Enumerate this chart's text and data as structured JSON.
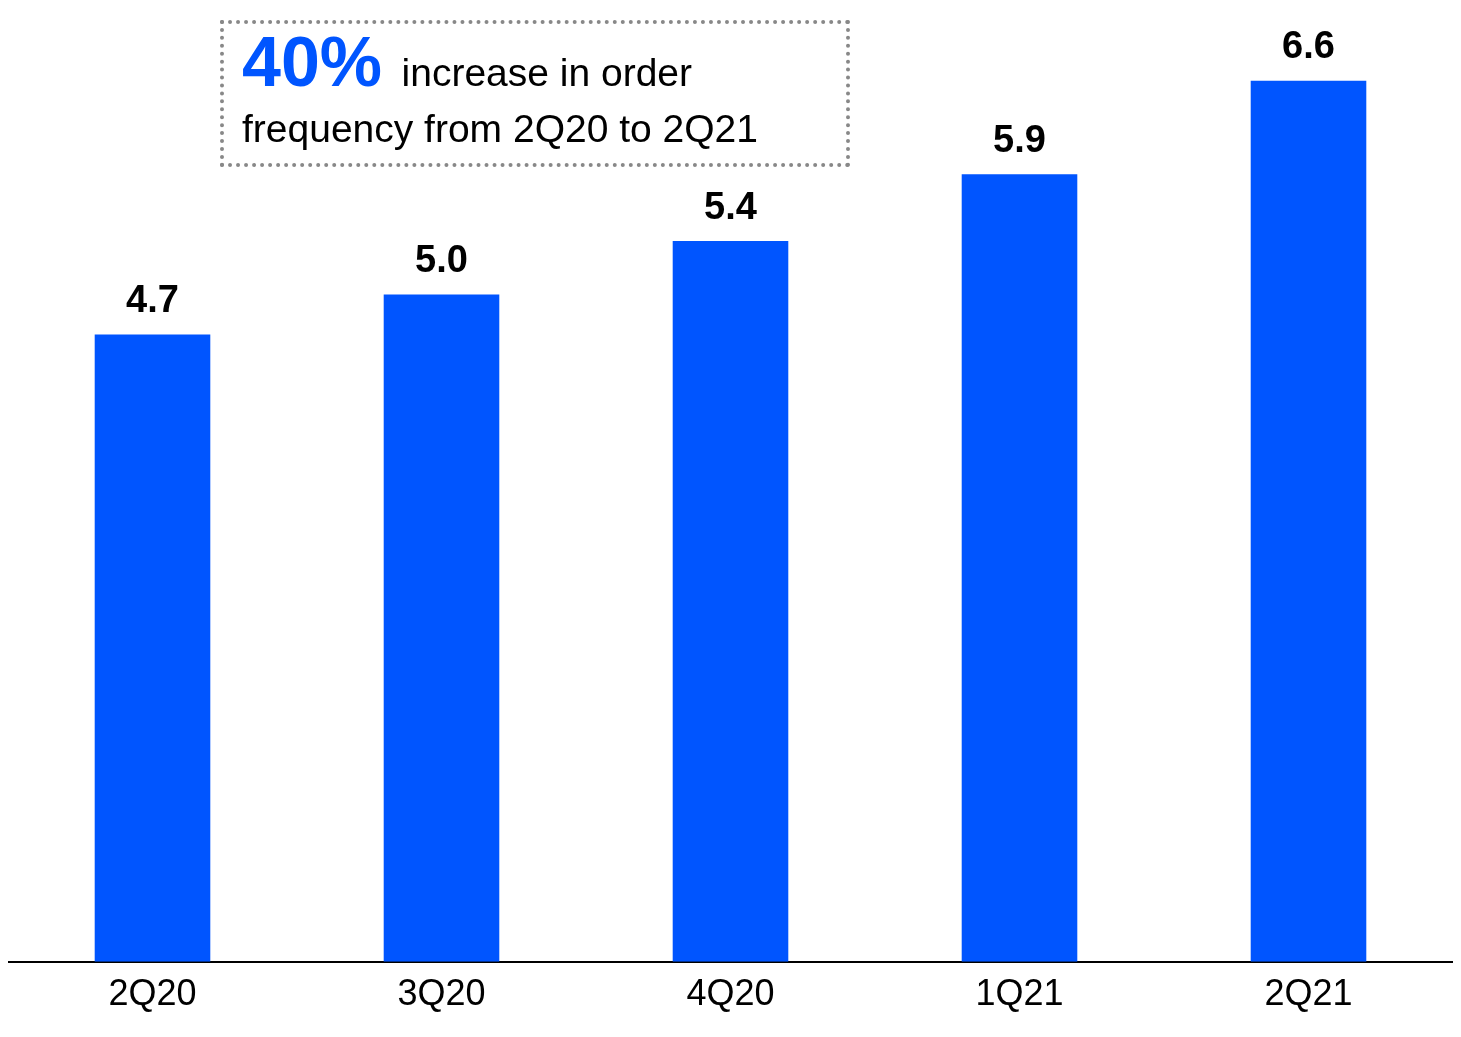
{
  "chart_data": {
    "type": "bar",
    "categories": [
      "2Q20",
      "3Q20",
      "4Q20",
      "1Q21",
      "2Q21"
    ],
    "values": [
      4.7,
      5.0,
      5.4,
      5.9,
      6.6
    ],
    "value_labels": [
      "4.7",
      "5.0",
      "5.4",
      "5.9",
      "6.6"
    ],
    "color": "#0055ff",
    "grid": false,
    "legend": false,
    "annotations": [
      "40% increase in order frequency from 2Q20 to 2Q21"
    ]
  }
}
